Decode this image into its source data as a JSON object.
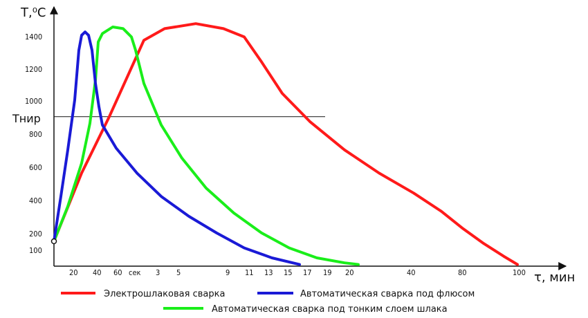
{
  "chart_data": {
    "type": "line",
    "y_axis_label": "T,⁰C",
    "x_axis_label": "τ, мин",
    "y_ticks": [
      "100",
      "200",
      "400",
      "600",
      "800",
      "1000",
      "1200",
      "1400"
    ],
    "x_ticks": [
      "20",
      "40",
      "60",
      "сек",
      "3",
      "5",
      "9",
      "11",
      "13",
      "15",
      "17",
      "19",
      "20",
      "40",
      "80",
      "100"
    ],
    "reference_line": {
      "label": "Tнир",
      "y": 900
    },
    "series": [
      {
        "name": "Электрошлаковая сварка",
        "color": "#ff1a1a",
        "points": [
          [
            0,
            150
          ],
          [
            40,
            560
          ],
          [
            80,
            900
          ],
          [
            130,
            1360
          ],
          [
            160,
            1430
          ],
          [
            205,
            1460
          ],
          [
            245,
            1430
          ],
          [
            275,
            1380
          ],
          [
            300,
            1230
          ],
          [
            330,
            1040
          ],
          [
            370,
            870
          ],
          [
            420,
            700
          ],
          [
            470,
            560
          ],
          [
            520,
            440
          ],
          [
            560,
            330
          ],
          [
            590,
            230
          ],
          [
            620,
            140
          ],
          [
            650,
            60
          ],
          [
            670,
            10
          ]
        ]
      },
      {
        "name": "Автоматическая сварка под флюсом",
        "color": "#1a1ad6",
        "points": [
          [
            0,
            150
          ],
          [
            10,
            420
          ],
          [
            20,
            700
          ],
          [
            30,
            1000
          ],
          [
            36,
            1300
          ],
          [
            40,
            1390
          ],
          [
            45,
            1410
          ],
          [
            50,
            1390
          ],
          [
            55,
            1300
          ],
          [
            60,
            1100
          ],
          [
            65,
            960
          ],
          [
            70,
            850
          ],
          [
            90,
            710
          ],
          [
            120,
            560
          ],
          [
            155,
            420
          ],
          [
            195,
            300
          ],
          [
            235,
            200
          ],
          [
            275,
            110
          ],
          [
            315,
            50
          ],
          [
            355,
            10
          ]
        ]
      },
      {
        "name": "Автоматическая сварка под тонким слоем шлака",
        "color": "#1aee1a",
        "points": [
          [
            0,
            150
          ],
          [
            20,
            360
          ],
          [
            40,
            620
          ],
          [
            52,
            860
          ],
          [
            60,
            1120
          ],
          [
            64,
            1350
          ],
          [
            70,
            1400
          ],
          [
            85,
            1440
          ],
          [
            100,
            1430
          ],
          [
            112,
            1380
          ],
          [
            118,
            1300
          ],
          [
            130,
            1100
          ],
          [
            155,
            850
          ],
          [
            185,
            650
          ],
          [
            220,
            470
          ],
          [
            260,
            320
          ],
          [
            300,
            200
          ],
          [
            340,
            110
          ],
          [
            380,
            50
          ],
          [
            420,
            20
          ],
          [
            440,
            10
          ]
        ]
      }
    ]
  }
}
